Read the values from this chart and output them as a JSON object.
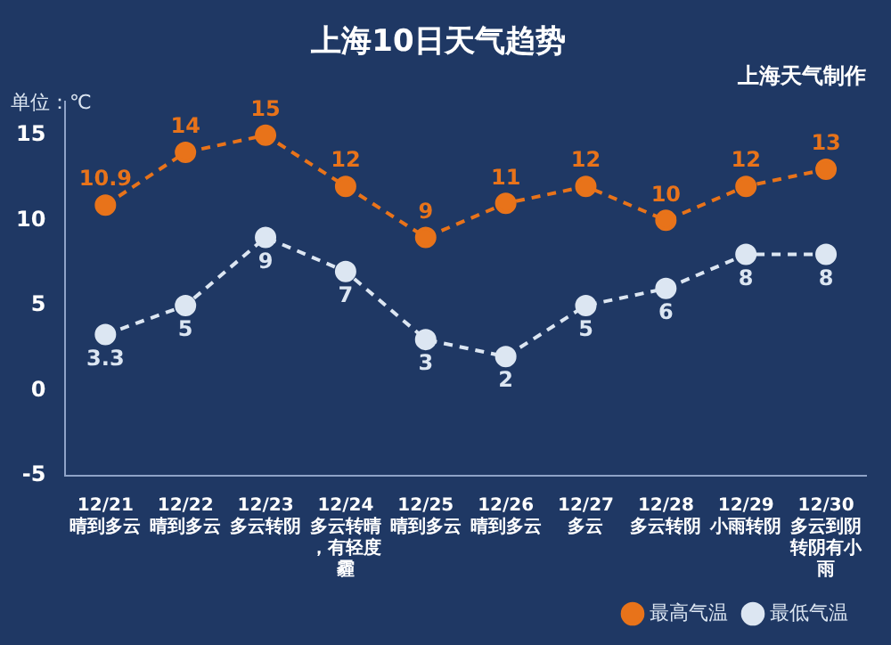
{
  "chart_data": {
    "type": "line",
    "title": "上海10日天气趋势",
    "subtitle": "上海天气制作",
    "ylabel": "单位：℃",
    "categories": [
      "12/21\n晴到多云",
      "12/22\n晴到多云",
      "12/23\n多云转阴",
      "12/24\n多云转晴，有轻度霾",
      "12/25\n晴到多云",
      "12/26\n晴到多云",
      "12/27\n多云",
      "12/28\n多云转阴",
      "12/29\n小雨转阴",
      "12/30\n多云到阴转阴有小雨"
    ],
    "series": [
      {
        "name": "最高气温",
        "color": "#e8731a",
        "values": [
          10.9,
          14,
          15,
          12,
          9,
          11,
          12,
          10,
          12,
          13
        ]
      },
      {
        "name": "最低气温",
        "color": "#dce6f2",
        "values": [
          3.3,
          5,
          9,
          7,
          3,
          2,
          5,
          6,
          8,
          8
        ]
      }
    ],
    "ylim": [
      -5,
      17
    ],
    "yticks": [
      -5,
      0,
      5,
      10,
      15
    ],
    "grid": false,
    "legend": "bottom right",
    "marker": "circle",
    "line_style": "dashed",
    "data_labels": true
  }
}
